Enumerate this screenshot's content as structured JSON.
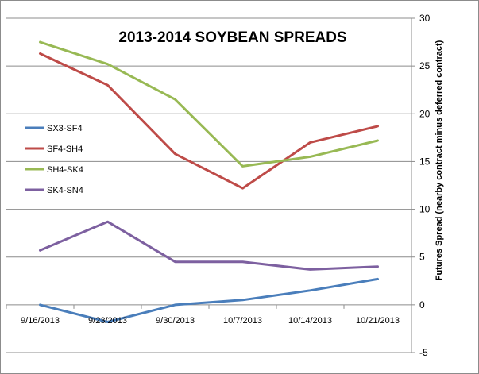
{
  "chart_data": {
    "type": "line",
    "title": "2013-2014 SOYBEAN SPREADS",
    "ylabel": "Futures Spread (nearby contract  minus deferred contract)",
    "xlabel": "",
    "categories": [
      "9/16/2013",
      "9/23/2013",
      "9/30/2013",
      "10/7/2013",
      "10/14/2013",
      "10/21/2013"
    ],
    "ylim": [
      -5,
      30
    ],
    "yticks": [
      -5,
      0,
      5,
      10,
      15,
      20,
      25,
      30
    ],
    "y_axis_side": "right",
    "grid": "horizontal",
    "legend_position": "left",
    "series": [
      {
        "name": "SX3-SF4",
        "color": "#4a7ebb",
        "values": [
          0,
          -1.8,
          0,
          0.5,
          1.5,
          2.7
        ]
      },
      {
        "name": "SF4-SH4",
        "color": "#be4b48",
        "values": [
          26.3,
          23,
          15.8,
          12.2,
          17,
          18.7
        ]
      },
      {
        "name": "SH4-SK4",
        "color": "#98b954",
        "values": [
          27.5,
          25.2,
          21.5,
          14.5,
          15.5,
          17.2
        ]
      },
      {
        "name": "SK4-SN4",
        "color": "#7d60a0",
        "values": [
          5.7,
          8.7,
          4.5,
          4.5,
          3.7,
          4
        ]
      }
    ]
  }
}
